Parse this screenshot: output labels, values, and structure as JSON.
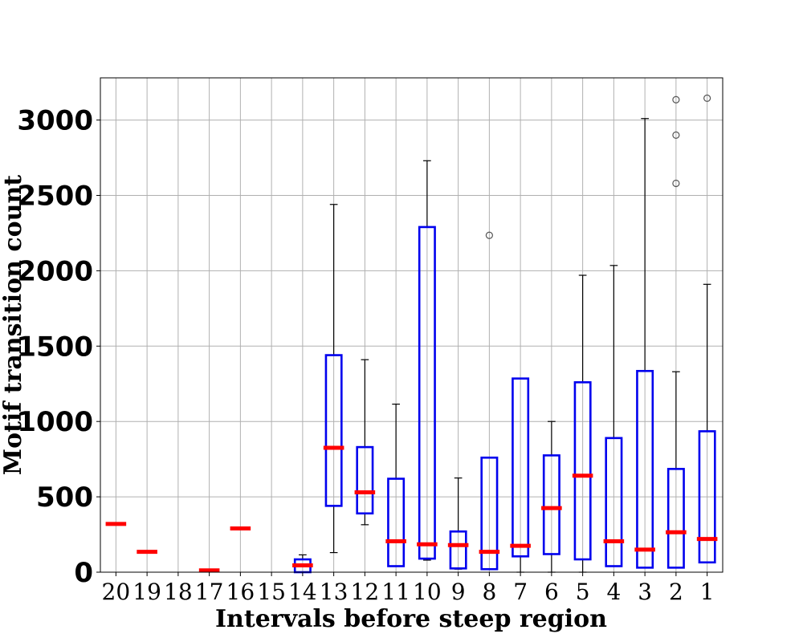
{
  "chart_data": {
    "type": "box",
    "xlabel": "Intervals before steep region",
    "ylabel": "Motif transition count",
    "ylim": [
      0,
      3280
    ],
    "yticks": [
      0,
      500,
      1000,
      1500,
      2000,
      2500,
      3000
    ],
    "grid": true,
    "colors": {
      "box": "#0000ee",
      "median": "#ff0000",
      "whisker": "#000000",
      "flier": "#555555",
      "grid": "#b0b0b0"
    },
    "categories": [
      "20",
      "19",
      "18",
      "17",
      "16",
      "15",
      "14",
      "13",
      "12",
      "11",
      "10",
      "9",
      "8",
      "7",
      "6",
      "5",
      "4",
      "3",
      "2",
      "1"
    ],
    "boxes": [
      {
        "label": "20",
        "median": 320
      },
      {
        "label": "19",
        "median": 135
      },
      {
        "label": "18"
      },
      {
        "label": "17",
        "median": 12
      },
      {
        "label": "16",
        "median": 290
      },
      {
        "label": "15"
      },
      {
        "label": "14",
        "whislo": 0,
        "q1": 0,
        "median": 45,
        "q3": 85,
        "whishi": 115,
        "fliers": []
      },
      {
        "label": "13",
        "whislo": 130,
        "q1": 440,
        "median": 825,
        "q3": 1440,
        "whishi": 2440,
        "fliers": []
      },
      {
        "label": "12",
        "whislo": 315,
        "q1": 390,
        "median": 530,
        "q3": 830,
        "whishi": 1410,
        "fliers": []
      },
      {
        "label": "11",
        "whislo": 40,
        "q1": 40,
        "median": 205,
        "q3": 620,
        "whishi": 1115,
        "fliers": []
      },
      {
        "label": "10",
        "whislo": 80,
        "q1": 90,
        "median": 185,
        "q3": 2290,
        "whishi": 2730,
        "fliers": []
      },
      {
        "label": "9",
        "whislo": 20,
        "q1": 25,
        "median": 180,
        "q3": 270,
        "whishi": 625,
        "fliers": []
      },
      {
        "label": "8",
        "whislo": 20,
        "q1": 20,
        "median": 135,
        "q3": 760,
        "whishi": 760,
        "fliers": [
          2235
        ]
      },
      {
        "label": "7",
        "whislo": 0,
        "q1": 105,
        "median": 175,
        "q3": 1285,
        "whishi": 1285,
        "fliers": []
      },
      {
        "label": "6",
        "whislo": 0,
        "q1": 120,
        "median": 425,
        "q3": 775,
        "whishi": 1000,
        "fliers": []
      },
      {
        "label": "5",
        "whislo": 0,
        "q1": 85,
        "median": 640,
        "q3": 1260,
        "whishi": 1970,
        "fliers": []
      },
      {
        "label": "4",
        "whislo": 40,
        "q1": 40,
        "median": 205,
        "q3": 890,
        "whishi": 2035,
        "fliers": []
      },
      {
        "label": "3",
        "whislo": 30,
        "q1": 30,
        "median": 150,
        "q3": 1335,
        "whishi": 3010,
        "fliers": []
      },
      {
        "label": "2",
        "whislo": 30,
        "q1": 30,
        "median": 265,
        "q3": 685,
        "whishi": 1330,
        "fliers": [
          2580,
          2900,
          3135
        ]
      },
      {
        "label": "1",
        "whislo": 65,
        "q1": 65,
        "median": 220,
        "q3": 935,
        "whishi": 1910,
        "fliers": [
          3145
        ]
      }
    ]
  }
}
